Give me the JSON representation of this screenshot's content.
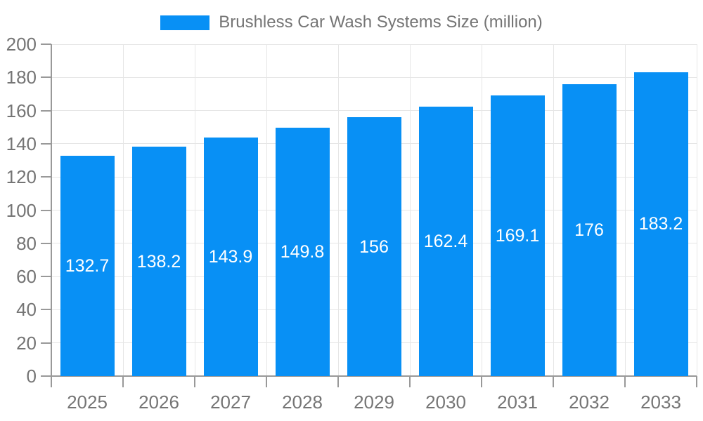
{
  "chart_data": {
    "type": "bar",
    "title": "Brushless Car Wash Systems Size (million)",
    "legend_position": "top-center",
    "categories": [
      "2025",
      "2026",
      "2027",
      "2028",
      "2029",
      "2030",
      "2031",
      "2032",
      "2033"
    ],
    "values": [
      132.7,
      138.2,
      143.9,
      149.8,
      156,
      162.4,
      169.1,
      176,
      183.2
    ],
    "xlabel": "",
    "ylabel": "",
    "ylim": [
      0,
      200
    ],
    "ytick_step": 20,
    "grid": true,
    "colors": {
      "bar": "#0890f5",
      "value_label": "#ffffff",
      "axis_line": "#999999",
      "tick_mark": "#999999",
      "grid_line": "#e6e6e6",
      "tick_label": "#757575",
      "legend_text": "#757575",
      "background": "#ffffff"
    }
  }
}
